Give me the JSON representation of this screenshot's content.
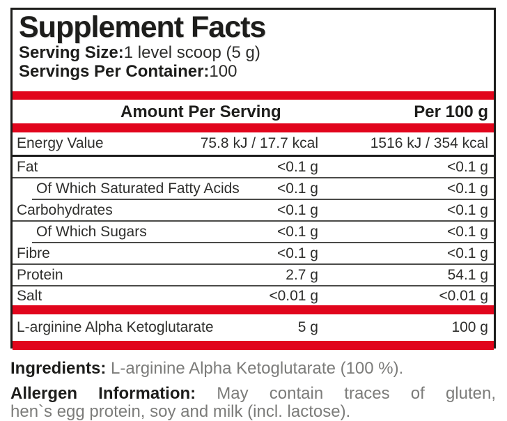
{
  "colors": {
    "accent_red": "#e1051c",
    "heading_black": "#1d1d1b",
    "body_gray": "#7c7c7a",
    "row_text": "#2e2e2c"
  },
  "panel": {
    "title": "Supplement Facts",
    "serving_size_label": "Serving Size:",
    "serving_size_value": "1 level scoop (5 g)",
    "servings_per_container_label": "Servings Per Container:",
    "servings_per_container_value": "100",
    "columns": {
      "amount_per_serving": "Amount Per Serving",
      "per_100g": "Per 100 g"
    },
    "rows": [
      {
        "label": "Energy Value",
        "serving": "75.8 kJ / 17.7 kcal",
        "per100": "1516 kJ / 354 kcal",
        "thick": true
      },
      {
        "label": "Fat",
        "serving": "<0.1 g",
        "per100": "<0.1 g"
      },
      {
        "label": "Of Which Saturated Fatty Acids",
        "serving": "<0.1 g",
        "per100": "<0.1 g",
        "indent": true
      },
      {
        "label": "Carbohydrates",
        "serving": "<0.1 g",
        "per100": "<0.1 g"
      },
      {
        "label": "Of Which Sugars",
        "serving": "<0.1 g",
        "per100": "<0.1 g",
        "indent": true
      },
      {
        "label": "Fibre",
        "serving": "<0.1 g",
        "per100": "<0.1 g"
      },
      {
        "label": "Protein",
        "serving": "2.7 g",
        "per100": "54.1 g"
      },
      {
        "label": "Salt",
        "serving": "<0.01 g",
        "per100": "<0.01 g",
        "noline": true
      }
    ],
    "active_ingredient_row": {
      "label": "L-arginine Alpha Ketoglutarate",
      "serving": "5 g",
      "per100": "100 g"
    }
  },
  "footer": {
    "ingredients_label": "Ingredients:",
    "ingredients_text": " L-arginine Alpha Ketoglutarate (100 %).",
    "allergen_label": "Allergen Information:",
    "allergen_line1_text": " May contain traces of gluten,",
    "allergen_line2_text": "hen`s egg protein, soy and milk (incl. lactose)."
  }
}
